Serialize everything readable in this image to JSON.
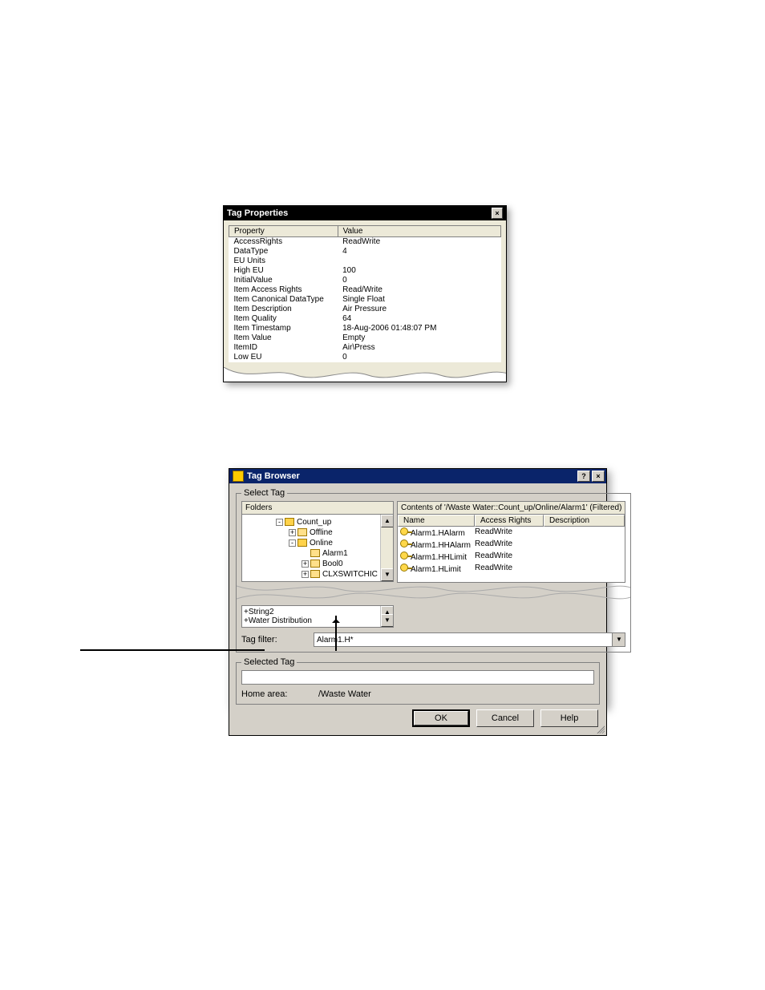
{
  "tagprops": {
    "title": "Tag Properties",
    "columns": {
      "prop": "Property",
      "val": "Value"
    },
    "rows": [
      {
        "p": "AccessRights",
        "v": "ReadWrite"
      },
      {
        "p": "DataType",
        "v": "4"
      },
      {
        "p": "EU Units",
        "v": ""
      },
      {
        "p": "High EU",
        "v": "100"
      },
      {
        "p": "InitialValue",
        "v": "0"
      },
      {
        "p": "Item Access Rights",
        "v": "Read/Write"
      },
      {
        "p": "Item Canonical DataType",
        "v": "Single Float"
      },
      {
        "p": "Item Description",
        "v": "Air Pressure"
      },
      {
        "p": "Item Quality",
        "v": "64"
      },
      {
        "p": "Item Timestamp",
        "v": "18-Aug-2006 01:48:07 PM"
      },
      {
        "p": "Item Value",
        "v": "Empty"
      },
      {
        "p": "ItemID",
        "v": "Air\\Press"
      },
      {
        "p": "Low EU",
        "v": "0"
      }
    ]
  },
  "browser": {
    "title": "Tag Browser",
    "select_tag_legend": "Select Tag",
    "folders_label": "Folders",
    "contents_label": "Contents of '/Waste Water::Count_up/Online/Alarm1' (Filtered)",
    "list_columns": {
      "name": "Name",
      "access": "Access Rights",
      "desc": "Description"
    },
    "tree": [
      {
        "indent": 40,
        "exp": "-",
        "open": true,
        "label": "Count_up"
      },
      {
        "indent": 56,
        "exp": "+",
        "open": false,
        "label": "Offline"
      },
      {
        "indent": 56,
        "exp": "-",
        "open": true,
        "label": "Online"
      },
      {
        "indent": 72,
        "exp": "",
        "open": false,
        "label": "Alarm1"
      },
      {
        "indent": 72,
        "exp": "+",
        "open": false,
        "label": "Bool0"
      },
      {
        "indent": 72,
        "exp": "+",
        "open": false,
        "label": "CLXSWITCHIC"
      }
    ],
    "tree2": [
      {
        "indent": 72,
        "exp": "+",
        "open": false,
        "label": "String2"
      },
      {
        "indent": 32,
        "exp": "+",
        "open": false,
        "label": "Water Distribution"
      }
    ],
    "items": [
      {
        "name": "Alarm1.HAlarm",
        "access": "ReadWrite",
        "desc": ""
      },
      {
        "name": "Alarm1.HHAlarm",
        "access": "ReadWrite",
        "desc": ""
      },
      {
        "name": "Alarm1.HHLimit",
        "access": "ReadWrite",
        "desc": ""
      },
      {
        "name": "Alarm1.HLimit",
        "access": "ReadWrite",
        "desc": ""
      }
    ],
    "tagfilter_label": "Tag filter:",
    "tagfilter_value": "Alarm1.H*",
    "selected_legend": "Selected Tag",
    "selected_value": "",
    "home_label": "Home area:",
    "home_value": "/Waste Water",
    "buttons": {
      "ok": "OK",
      "cancel": "Cancel",
      "help": "Help"
    }
  },
  "colors": {
    "dialog_bg": "#d4d0c8",
    "titlebar_active": "#0a246a",
    "folder": "#ffe08a"
  }
}
